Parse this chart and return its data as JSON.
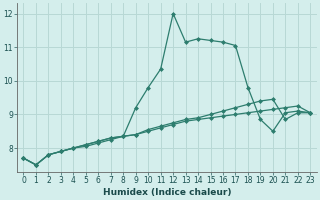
{
  "xlabel": "Humidex (Indice chaleur)",
  "x": [
    0,
    1,
    2,
    3,
    4,
    5,
    6,
    7,
    8,
    9,
    10,
    11,
    12,
    13,
    14,
    15,
    16,
    17,
    18,
    19,
    20,
    21,
    22,
    23
  ],
  "line_bottom": [
    7.7,
    7.5,
    7.8,
    7.9,
    8.0,
    8.05,
    8.15,
    8.25,
    8.35,
    8.4,
    8.5,
    8.6,
    8.7,
    8.8,
    8.85,
    8.9,
    8.95,
    9.0,
    9.05,
    9.1,
    9.15,
    9.2,
    9.25,
    9.05
  ],
  "line_middle": [
    7.7,
    7.5,
    7.8,
    7.9,
    8.0,
    8.1,
    8.2,
    8.3,
    8.35,
    8.4,
    8.55,
    8.65,
    8.75,
    8.85,
    8.9,
    9.0,
    9.1,
    9.2,
    9.3,
    9.4,
    9.45,
    8.85,
    9.05,
    9.05
  ],
  "line_top": [
    7.7,
    7.5,
    7.8,
    7.9,
    8.0,
    8.1,
    8.2,
    8.3,
    8.35,
    9.2,
    9.8,
    10.35,
    12.0,
    11.15,
    11.25,
    11.2,
    11.15,
    11.05,
    9.8,
    8.85,
    8.5,
    9.05,
    9.1,
    9.05
  ],
  "bg_color": "#d4eeec",
  "grid_color": "#b8d8d5",
  "line_color": "#2d7d6e",
  "ylim": [
    7.3,
    12.3
  ],
  "xlim": [
    -0.5,
    23.5
  ],
  "yticks": [
    8,
    9,
    10,
    11,
    12
  ],
  "xticks": [
    0,
    1,
    2,
    3,
    4,
    5,
    6,
    7,
    8,
    9,
    10,
    11,
    12,
    13,
    14,
    15,
    16,
    17,
    18,
    19,
    20,
    21,
    22,
    23
  ]
}
